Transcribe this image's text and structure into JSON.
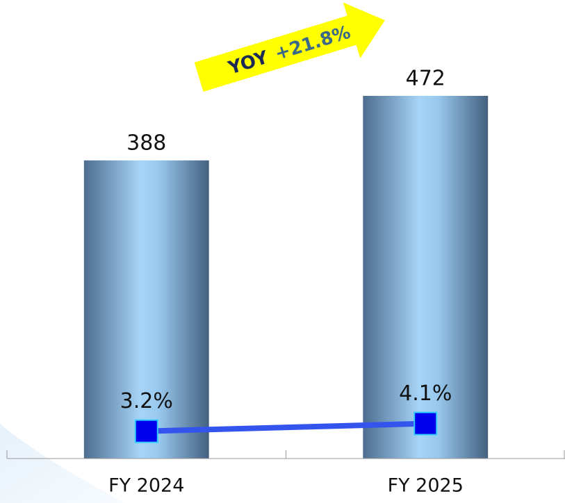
{
  "chart_data": {
    "type": "bar",
    "categories": [
      "FY 2024",
      "FY 2025"
    ],
    "values": [
      388,
      472
    ],
    "color": "#9fd0f5",
    "ylim": [
      0,
      500
    ],
    "series": [
      {
        "type": "line",
        "axis": "y2",
        "color": "#3355ee",
        "values": [
          3.2,
          4.1
        ],
        "value_labels": [
          "3.2%",
          "4.1%"
        ]
      }
    ],
    "y2lim": [
      0,
      45
    ],
    "annotations": [
      "YOY",
      "+21.8%"
    ]
  }
}
